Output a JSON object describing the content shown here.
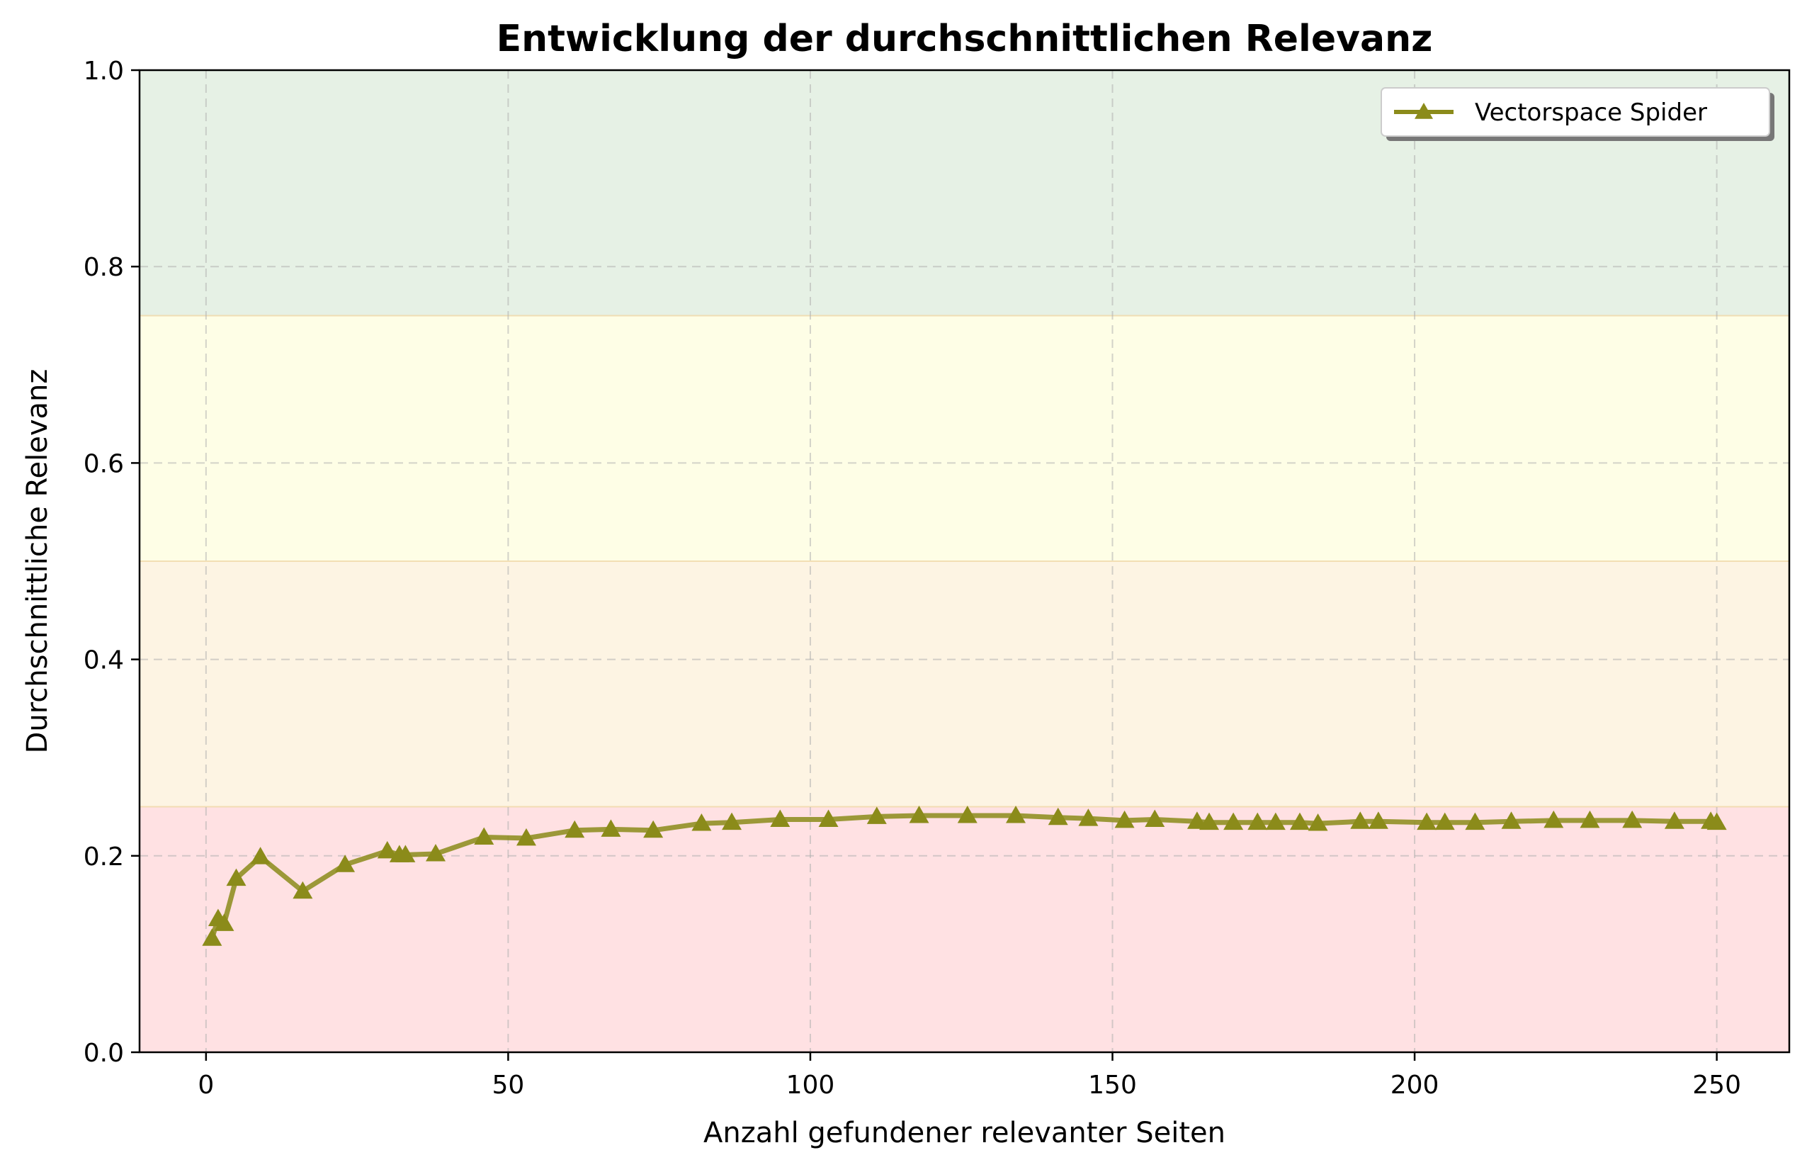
{
  "chart_data": {
    "type": "line",
    "title": "Entwicklung der durchschnittlichen Relevanz",
    "xlabel": "Anzahl gefundener relevanter Seiten",
    "ylabel": "Durchschnittliche Relevanz",
    "xlim": [
      -11,
      262
    ],
    "ylim": [
      0.0,
      1.0
    ],
    "xticks": [
      0,
      50,
      100,
      150,
      200,
      250
    ],
    "yticks": [
      0.0,
      0.2,
      0.4,
      0.6,
      0.8,
      1.0
    ],
    "xtick_labels": [
      "0",
      "50",
      "100",
      "150",
      "200",
      "250"
    ],
    "ytick_labels": [
      "0.0",
      "0.2",
      "0.4",
      "0.6",
      "0.8",
      "1.0"
    ],
    "grid": true,
    "legend_position": "top-right",
    "bands": [
      {
        "from": 0.0,
        "to": 0.25,
        "color": "#ffe1e3"
      },
      {
        "from": 0.25,
        "to": 0.5,
        "color": "#fdf4e3"
      },
      {
        "from": 0.5,
        "to": 0.75,
        "color": "#fefee6"
      },
      {
        "from": 0.75,
        "to": 1.0,
        "color": "#e6f1e5"
      }
    ],
    "series": [
      {
        "name": "Vectorspace Spider",
        "color": "#8b8b1a",
        "marker": "triangle",
        "x": [
          1,
          2,
          3,
          5,
          9,
          16,
          23,
          30,
          32,
          33,
          38,
          46,
          53,
          61,
          67,
          74,
          82,
          87,
          95,
          103,
          111,
          118,
          126,
          134,
          141,
          146,
          152,
          157,
          164,
          166,
          170,
          174,
          177,
          181,
          184,
          191,
          194,
          202,
          205,
          210,
          216,
          223,
          229,
          236,
          243,
          249,
          250
        ],
        "y": [
          0.116,
          0.136,
          0.131,
          0.177,
          0.199,
          0.164,
          0.191,
          0.205,
          0.201,
          0.201,
          0.202,
          0.219,
          0.218,
          0.226,
          0.227,
          0.226,
          0.233,
          0.234,
          0.237,
          0.237,
          0.24,
          0.241,
          0.241,
          0.241,
          0.239,
          0.238,
          0.236,
          0.237,
          0.235,
          0.234,
          0.234,
          0.234,
          0.234,
          0.234,
          0.233,
          0.235,
          0.235,
          0.234,
          0.234,
          0.234,
          0.235,
          0.236,
          0.236,
          0.236,
          0.235,
          0.235,
          0.234
        ]
      }
    ]
  }
}
